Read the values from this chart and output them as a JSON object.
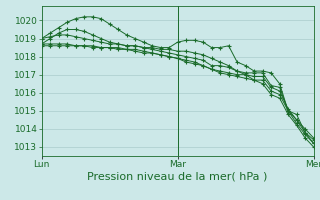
{
  "background_color": "#cce8e8",
  "grid_color": "#aacccc",
  "line_color": "#1a6b2a",
  "xlabel": "Pression niveau de la mer( hPa )",
  "xlabel_fontsize": 8,
  "tick_fontsize": 6.5,
  "ylim": [
    1012.5,
    1020.8
  ],
  "yticks": [
    1013,
    1014,
    1015,
    1016,
    1017,
    1018,
    1019,
    1020
  ],
  "xtick_labels": [
    "Lun",
    "Mar",
    "Mer"
  ],
  "xtick_positions": [
    0,
    16,
    32
  ],
  "total_points": 33,
  "series": [
    [
      1019.0,
      1019.3,
      1019.6,
      1019.9,
      1020.1,
      1020.2,
      1020.2,
      1020.1,
      1019.8,
      1019.5,
      1019.2,
      1019.0,
      1018.8,
      1018.6,
      1018.5,
      1018.5,
      1018.8,
      1018.9,
      1018.9,
      1018.8,
      1018.5,
      1018.5,
      1018.6,
      1017.7,
      1017.5,
      1017.2,
      1017.2,
      1017.1,
      1016.5,
      1015.0,
      1014.8,
      1013.8,
      1013.2
    ],
    [
      1019.0,
      1019.1,
      1019.2,
      1019.2,
      1019.1,
      1019.0,
      1018.9,
      1018.8,
      1018.7,
      1018.7,
      1018.6,
      1018.6,
      1018.5,
      1018.4,
      1018.3,
      1018.2,
      1018.1,
      1018.0,
      1017.9,
      1017.8,
      1017.5,
      1017.5,
      1017.4,
      1017.2,
      1017.1,
      1017.1,
      1017.1,
      1016.4,
      1016.3,
      1015.0,
      1014.5,
      1014.0,
      1013.5
    ],
    [
      1018.7,
      1018.7,
      1018.7,
      1018.7,
      1018.6,
      1018.6,
      1018.6,
      1018.5,
      1018.5,
      1018.5,
      1018.4,
      1018.4,
      1018.3,
      1018.2,
      1018.1,
      1018.0,
      1017.9,
      1017.8,
      1017.7,
      1017.5,
      1017.3,
      1017.2,
      1017.1,
      1017.0,
      1017.0,
      1016.9,
      1016.9,
      1016.3,
      1016.1,
      1015.1,
      1014.5,
      1013.8,
      1013.4
    ],
    [
      1018.6,
      1018.6,
      1018.6,
      1018.6,
      1018.6,
      1018.6,
      1018.5,
      1018.5,
      1018.5,
      1018.4,
      1018.4,
      1018.3,
      1018.2,
      1018.2,
      1018.1,
      1018.0,
      1017.9,
      1017.7,
      1017.6,
      1017.5,
      1017.3,
      1017.1,
      1017.0,
      1016.9,
      1016.8,
      1016.7,
      1016.7,
      1016.1,
      1015.9,
      1015.0,
      1014.3,
      1013.7,
      1013.2
    ],
    [
      1018.7,
      1019.0,
      1019.3,
      1019.5,
      1019.5,
      1019.4,
      1019.2,
      1019.0,
      1018.8,
      1018.7,
      1018.6,
      1018.6,
      1018.5,
      1018.5,
      1018.4,
      1018.4,
      1018.3,
      1018.3,
      1018.2,
      1018.1,
      1017.9,
      1017.7,
      1017.5,
      1017.2,
      1017.0,
      1016.7,
      1016.5,
      1015.9,
      1015.7,
      1014.8,
      1014.2,
      1013.5,
      1013.0
    ]
  ]
}
